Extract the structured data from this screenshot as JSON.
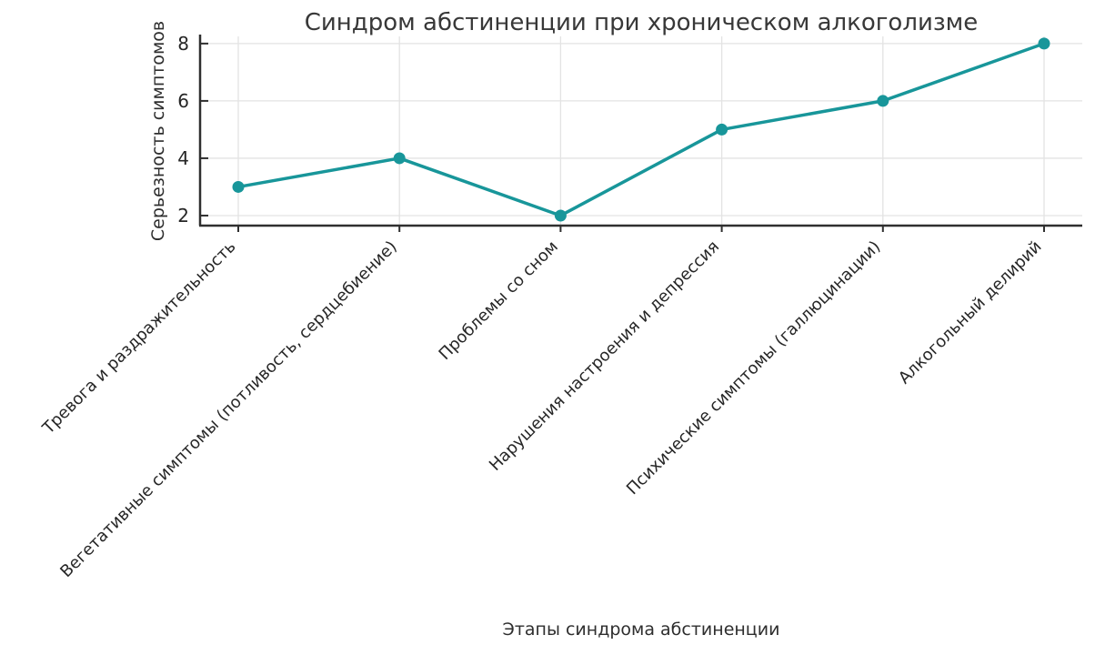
{
  "chart_data": {
    "type": "line",
    "title": "Синдром абстиненции при хроническом алкоголизме",
    "xlabel": "Этапы синдрома абстиненции",
    "ylabel": "Серьезность симптомов",
    "categories": [
      "Тревога и раздражительность",
      "Вегетативные симптомы (потливость, сердцебиение)",
      "Проблемы со сном",
      "Нарушения настроения и депрессия",
      "Психические симптомы (галлюцинации)",
      "Алкогольный делирий"
    ],
    "values": [
      3,
      4,
      2,
      5,
      6,
      8
    ],
    "yticks": [
      2,
      4,
      6,
      8
    ],
    "ylim": [
      1.65,
      8.25
    ],
    "x_tick_rotation_deg": 45,
    "grid": true,
    "legend": "none",
    "line_color": "#18969a",
    "marker_color": "#18969a",
    "grid_color": "#e3e3e3",
    "axis_color": "#2f2f2f",
    "background": "#ffffff"
  }
}
